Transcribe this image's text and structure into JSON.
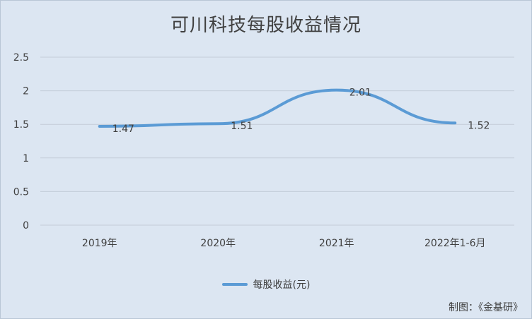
{
  "chart_data": {
    "type": "line",
    "title": "可川科技每股收益情况",
    "categories": [
      "2019年",
      "2020年",
      "2021年",
      "2022年1-6月"
    ],
    "series": [
      {
        "name": "每股收益(元)",
        "values": [
          1.47,
          1.51,
          2.01,
          1.52
        ],
        "labels": [
          "1.47",
          "1.51",
          "2.01",
          "1.52"
        ],
        "color": "#5b9bd5"
      }
    ],
    "yticks": [
      "0",
      "0.5",
      "1",
      "1.5",
      "2",
      "2.5"
    ],
    "ylim": [
      0,
      2.5
    ],
    "grid": true,
    "legend": "bottom"
  },
  "credit": "制图：《金基研》"
}
